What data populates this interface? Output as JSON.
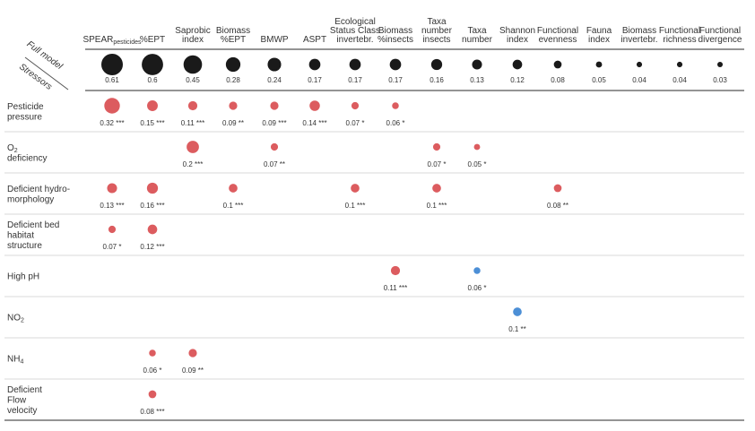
{
  "chart_data": {
    "type": "bubble-matrix",
    "corner_labels": {
      "top": "Full model",
      "bottom": "Stressors"
    },
    "columns": [
      {
        "lines": [
          "SPEAR"
        ],
        "sub": "pesticides"
      },
      {
        "lines": [
          "%EPT"
        ]
      },
      {
        "lines": [
          "Saprobic",
          "index"
        ]
      },
      {
        "lines": [
          "Biomass",
          "%EPT"
        ]
      },
      {
        "lines": [
          "BMWP"
        ]
      },
      {
        "lines": [
          "ASPT"
        ]
      },
      {
        "lines": [
          "Ecological",
          "Status Class",
          "invertebr."
        ]
      },
      {
        "lines": [
          "Biomass",
          "%insects"
        ]
      },
      {
        "lines": [
          "Taxa",
          "number",
          "insects"
        ]
      },
      {
        "lines": [
          "Taxa",
          "number"
        ]
      },
      {
        "lines": [
          "Shannon",
          "index"
        ]
      },
      {
        "lines": [
          "Functional",
          "evenness"
        ]
      },
      {
        "lines": [
          "Fauna",
          "index"
        ]
      },
      {
        "lines": [
          "Biomass",
          "invertebr."
        ]
      },
      {
        "lines": [
          "Functional",
          "richness"
        ]
      },
      {
        "lines": [
          "Functional",
          "divergence"
        ]
      }
    ],
    "full_model": {
      "values": [
        0.61,
        0.6,
        0.45,
        0.28,
        0.24,
        0.17,
        0.17,
        0.17,
        0.16,
        0.13,
        0.12,
        0.08,
        0.05,
        0.04,
        0.04,
        0.03
      ],
      "labels": [
        "0.61",
        "0.6",
        "0.45",
        "0.28",
        "0.24",
        "0.17",
        "0.17",
        "0.17",
        "0.16",
        "0.13",
        "0.12",
        "0.08",
        "0.05",
        "0.04",
        "0.04",
        "0.03"
      ]
    },
    "rows": [
      {
        "lines": [
          "Pesticide",
          "pressure"
        ],
        "cells": [
          {
            "col": 0,
            "value": 0.32,
            "label": "0.32 ***",
            "effect": "negative"
          },
          {
            "col": 1,
            "value": 0.15,
            "label": "0.15 ***",
            "effect": "negative"
          },
          {
            "col": 2,
            "value": 0.11,
            "label": "0.11 ***",
            "effect": "negative"
          },
          {
            "col": 3,
            "value": 0.09,
            "label": "0.09 **",
            "effect": "negative"
          },
          {
            "col": 4,
            "value": 0.09,
            "label": "0.09 ***",
            "effect": "negative"
          },
          {
            "col": 5,
            "value": 0.14,
            "label": "0.14 ***",
            "effect": "negative"
          },
          {
            "col": 6,
            "value": 0.07,
            "label": "0.07 *",
            "effect": "negative"
          },
          {
            "col": 7,
            "value": 0.06,
            "label": "0.06 *",
            "effect": "negative"
          }
        ]
      },
      {
        "lines": [
          "O",
          "deficiency"
        ],
        "sub": "2",
        "cells": [
          {
            "col": 2,
            "value": 0.2,
            "label": "0.2 ***",
            "effect": "negative"
          },
          {
            "col": 4,
            "value": 0.07,
            "label": "0.07 **",
            "effect": "negative"
          },
          {
            "col": 8,
            "value": 0.07,
            "label": "0.07 *",
            "effect": "negative"
          },
          {
            "col": 9,
            "value": 0.05,
            "label": "0.05 *",
            "effect": "negative"
          }
        ]
      },
      {
        "lines": [
          "Deficient hydro-",
          "morphology"
        ],
        "cells": [
          {
            "col": 0,
            "value": 0.13,
            "label": "0.13 ***",
            "effect": "negative"
          },
          {
            "col": 1,
            "value": 0.16,
            "label": "0.16 ***",
            "effect": "negative"
          },
          {
            "col": 3,
            "value": 0.1,
            "label": "0.1 ***",
            "effect": "negative"
          },
          {
            "col": 6,
            "value": 0.1,
            "label": "0.1 ***",
            "effect": "negative"
          },
          {
            "col": 8,
            "value": 0.1,
            "label": "0.1 ***",
            "effect": "negative"
          },
          {
            "col": 11,
            "value": 0.08,
            "label": "0.08 **",
            "effect": "negative"
          }
        ]
      },
      {
        "lines": [
          "Deficient bed",
          "habitat",
          "structure"
        ],
        "cells": [
          {
            "col": 0,
            "value": 0.07,
            "label": "0.07 *",
            "effect": "negative"
          },
          {
            "col": 1,
            "value": 0.12,
            "label": "0.12 ***",
            "effect": "negative"
          }
        ]
      },
      {
        "lines": [
          "High pH"
        ],
        "cells": [
          {
            "col": 7,
            "value": 0.11,
            "label": "0.11 ***",
            "effect": "negative"
          },
          {
            "col": 9,
            "value": 0.06,
            "label": "0.06 *",
            "effect": "positive"
          }
        ]
      },
      {
        "lines": [
          "NO"
        ],
        "sub": "2",
        "cells": [
          {
            "col": 10,
            "value": 0.1,
            "label": "0.1 **",
            "effect": "positive"
          }
        ]
      },
      {
        "lines": [
          "NH"
        ],
        "sub": "4",
        "cells": [
          {
            "col": 1,
            "value": 0.06,
            "label": "0.06 *",
            "effect": "negative"
          },
          {
            "col": 2,
            "value": 0.09,
            "label": "0.09 **",
            "effect": "negative"
          }
        ]
      },
      {
        "lines": [
          "Deficient",
          "Flow",
          "velocity"
        ],
        "cells": [
          {
            "col": 1,
            "value": 0.08,
            "label": "0.08 ***",
            "effect": "negative"
          }
        ]
      }
    ],
    "colors": {
      "full_model": "#1a1a1a",
      "negative": "#dc5c5f",
      "positive": "#4c8fd6",
      "grid": "#cccccc",
      "axis": "#555555"
    }
  }
}
